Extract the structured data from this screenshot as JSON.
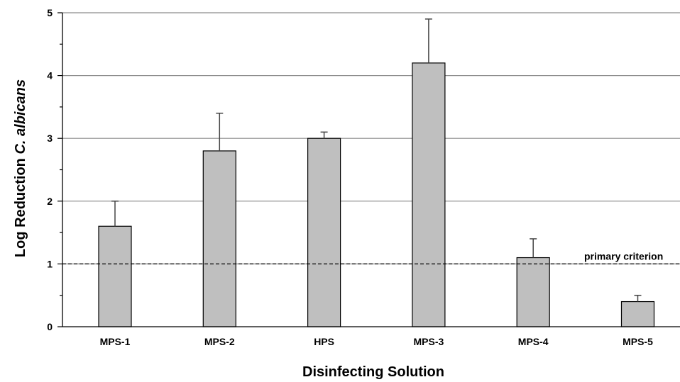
{
  "chart_data": {
    "type": "bar",
    "categories": [
      "MPS-1",
      "MPS-2",
      "HPS",
      "MPS-3",
      "MPS-4",
      "MPS-5"
    ],
    "values": [
      1.6,
      2.8,
      3.0,
      4.2,
      1.1,
      0.4
    ],
    "error_upper": [
      0.4,
      0.6,
      0.1,
      0.7,
      0.3,
      0.1
    ],
    "xlabel": "Disinfecting Solution",
    "ylabel_prefix": "Log Reduction ",
    "ylabel_italic": "C. albicans",
    "ylim": [
      0,
      5
    ],
    "yticks": [
      "0",
      "1",
      "2",
      "3",
      "4",
      "5"
    ],
    "grid": true,
    "bar_color": "#bfbfbf",
    "reference_line": {
      "value": 1,
      "label": "primary criterion",
      "style": "dashed"
    }
  }
}
